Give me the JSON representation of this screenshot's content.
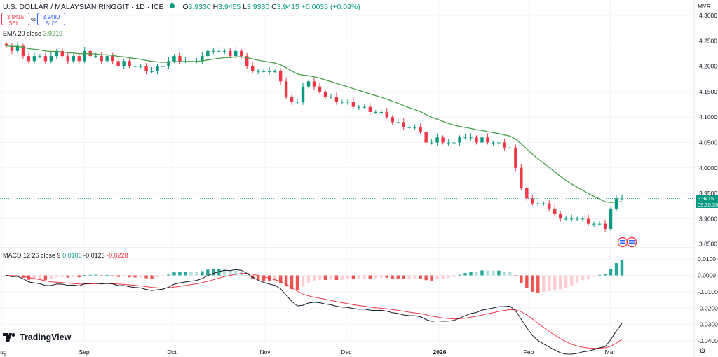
{
  "header": {
    "symbol": "U.S. DOLLAR / MALAYSIAN RINGGIT · 1D · ICE",
    "ohlc": [
      {
        "k": "O",
        "v": "3.9330"
      },
      {
        "k": "H",
        "v": "3.9465"
      },
      {
        "k": "L",
        "v": "3.9330"
      },
      {
        "k": "C",
        "v": "3.9415"
      }
    ],
    "change": "+0.0035 (+0.09%)",
    "sell_price": "3.9415",
    "sell_label": "SELL",
    "spread": "65",
    "buy_price": "3.9480",
    "buy_label": "BUY",
    "status_dot_color": "#089981"
  },
  "ema_legend": {
    "label": "EMA 20 close",
    "value": "3.9219"
  },
  "macd_legend": {
    "label": "MACD 12 26 close 9",
    "hist": "0.0106",
    "macd": "-0.0123",
    "signal": "-0.0228"
  },
  "price_axis": {
    "currency": "MYR",
    "ticks": [
      "4.3000",
      "4.2500",
      "4.2000",
      "4.1500",
      "4.1000",
      "4.0500",
      "4.0000",
      "3.9500",
      "3.9000",
      "3.8500"
    ],
    "last_price": "3.9415",
    "countdown": "09:30:39"
  },
  "macd_axis": {
    "ticks": [
      "0.0100",
      "0.0000",
      "-0.0100",
      "-0.0200",
      "-0.0300",
      "-0.0400"
    ]
  },
  "time_axis": {
    "labels": [
      "Aug",
      "Sep",
      "Oct",
      "Nov",
      "Dec",
      "2026",
      "Feb",
      "Mar"
    ]
  },
  "branding": {
    "logo_text": "TradingView"
  },
  "colors": {
    "up": "#089981",
    "down": "#f23645",
    "ema": "#43a047",
    "macd": "#131722",
    "signal": "#f23645",
    "hist_up": "#26a69a",
    "hist_down": "#ef5350"
  },
  "icons": {
    "settings": "gear-icon",
    "events": "flag-icon"
  },
  "chart_data": {
    "type": "candlestick",
    "title": "U.S. DOLLAR / MALAYSIAN RINGGIT · 1D · ICE",
    "ylim": [
      3.84,
      4.31
    ],
    "x_labels": [
      "Aug",
      "Sep",
      "Oct",
      "Nov",
      "Dec",
      "2026",
      "Feb",
      "Mar"
    ],
    "close_series": [
      4.24,
      4.23,
      4.24,
      4.22,
      4.21,
      4.22,
      4.22,
      4.21,
      4.22,
      4.23,
      4.22,
      4.21,
      4.22,
      4.21,
      4.23,
      4.22,
      4.22,
      4.21,
      4.22,
      4.21,
      4.2,
      4.21,
      4.2,
      4.2,
      4.2,
      4.19,
      4.19,
      4.2,
      4.2,
      4.21,
      4.22,
      4.21,
      4.21,
      4.21,
      4.21,
      4.22,
      4.23,
      4.23,
      4.23,
      4.23,
      4.22,
      4.23,
      4.22,
      4.2,
      4.19,
      4.19,
      4.19,
      4.19,
      4.19,
      4.17,
      4.14,
      4.13,
      4.13,
      4.16,
      4.17,
      4.16,
      4.15,
      4.14,
      4.14,
      4.13,
      4.13,
      4.13,
      4.12,
      4.12,
      4.12,
      4.11,
      4.11,
      4.11,
      4.1,
      4.09,
      4.09,
      4.08,
      4.08,
      4.08,
      4.07,
      4.05,
      4.05,
      4.06,
      4.05,
      4.05,
      4.05,
      4.06,
      4.06,
      4.06,
      4.05,
      4.06,
      4.05,
      4.05,
      4.05,
      4.04,
      4.04,
      4.0,
      3.96,
      3.94,
      3.93,
      3.93,
      3.93,
      3.92,
      3.91,
      3.9,
      3.9,
      3.9,
      3.9,
      3.9,
      3.89,
      3.89,
      3.89,
      3.88,
      3.92,
      3.94,
      3.94
    ],
    "ema20": {
      "name": "EMA 20 close",
      "last": 3.9219
    },
    "macd": {
      "name": "MACD 12 26 close 9",
      "hist": 0.0106,
      "macd": -0.0123,
      "signal": -0.0228,
      "ylim": [
        -0.042,
        0.012
      ]
    }
  }
}
